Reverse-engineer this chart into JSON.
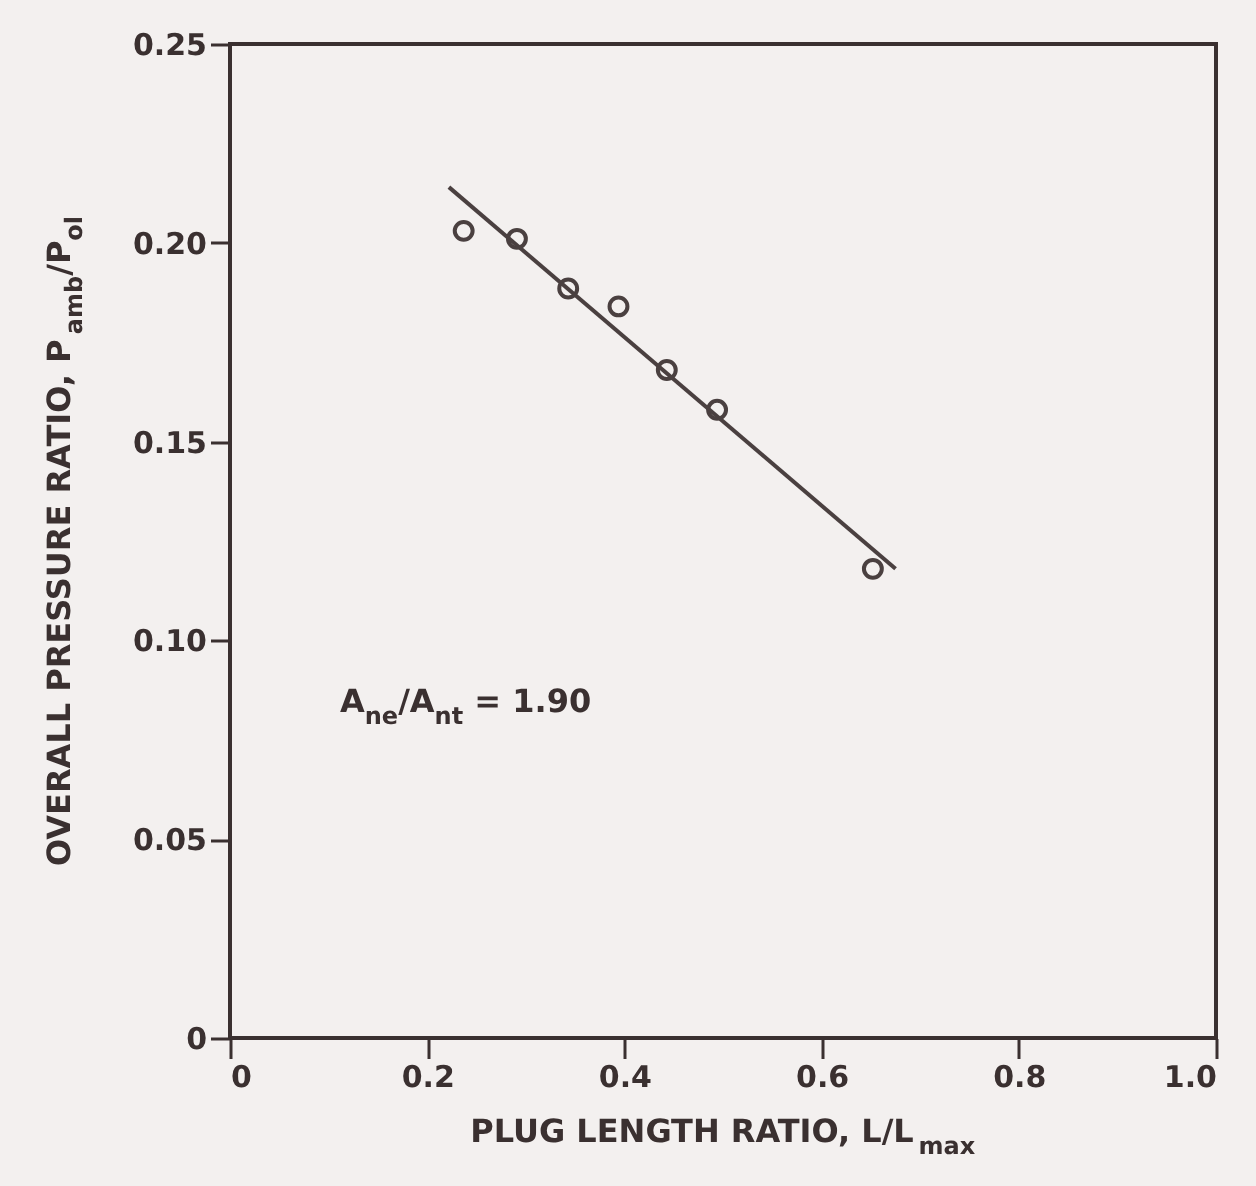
{
  "chart_data": {
    "type": "scatter",
    "xlabel": "PLUG LENGTH RATIO, L/L$_{max}$",
    "ylabel": "OVERALL PRESSURE RATIO, P$_{amb}$/P$_{ol}$",
    "annotations": [
      "A$_{ne}$/A$_{nt}$ = 1.90"
    ],
    "xlim": [
      0,
      1.0
    ],
    "ylim": [
      0,
      0.25
    ],
    "xticks": [
      0,
      0.2,
      0.4,
      0.6,
      0.8,
      {
        "value": 1.0,
        "label": "1.0"
      }
    ],
    "yticks": [
      0,
      {
        "value": 0.05,
        "label": "0.05"
      },
      {
        "value": 0.1,
        "label": "0.10"
      },
      0.15,
      {
        "value": 0.2,
        "label": "0.20"
      },
      0.25
    ],
    "grid": false,
    "marker": "circle",
    "series": [
      {
        "color": "#4a4040",
        "x": [
          0.237,
          0.291,
          0.343,
          0.394,
          0.443,
          0.494,
          0.652
        ],
        "values": [
          0.203,
          0.201,
          0.1885,
          0.184,
          0.168,
          0.158,
          0.118
        ]
      },
      {
        "type": "line",
        "color": "#4a4040",
        "line_style": "solid",
        "marker": "none",
        "x": [
          0.222,
          0.675
        ],
        "values": [
          0.214,
          0.118
        ]
      }
    ]
  }
}
